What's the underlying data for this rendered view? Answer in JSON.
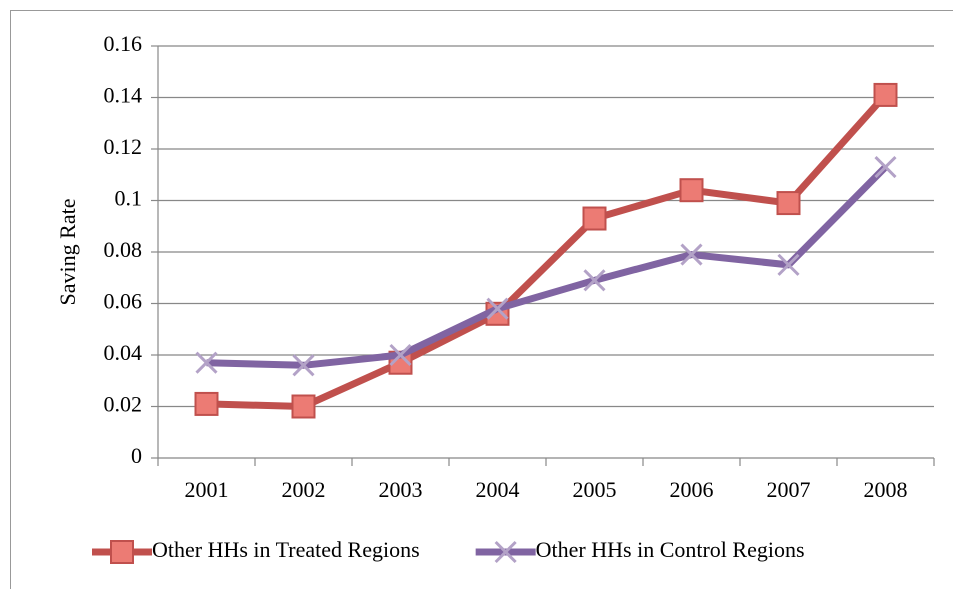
{
  "chart_data": {
    "type": "line",
    "y_label": "Saving Rate",
    "categories": [
      "2001",
      "2002",
      "2003",
      "2004",
      "2005",
      "2006",
      "2007",
      "2008"
    ],
    "series": [
      {
        "name": "Other HHs in Treated Regions",
        "color": "#c0504d",
        "marker": "square",
        "values": [
          0.021,
          0.02,
          0.037,
          0.056,
          0.093,
          0.104,
          0.099,
          0.141
        ]
      },
      {
        "name": "Other HHs in Control Regions",
        "color": "#8064a2",
        "marker": "x",
        "values": [
          0.037,
          0.036,
          0.04,
          0.058,
          0.069,
          0.079,
          0.075,
          0.113
        ]
      }
    ],
    "ylim": [
      0,
      0.16
    ],
    "yticks": [
      0,
      0.02,
      0.04,
      0.06,
      0.08,
      0.1,
      0.12,
      0.14,
      0.16
    ],
    "grid": true,
    "legend": "bottom"
  }
}
